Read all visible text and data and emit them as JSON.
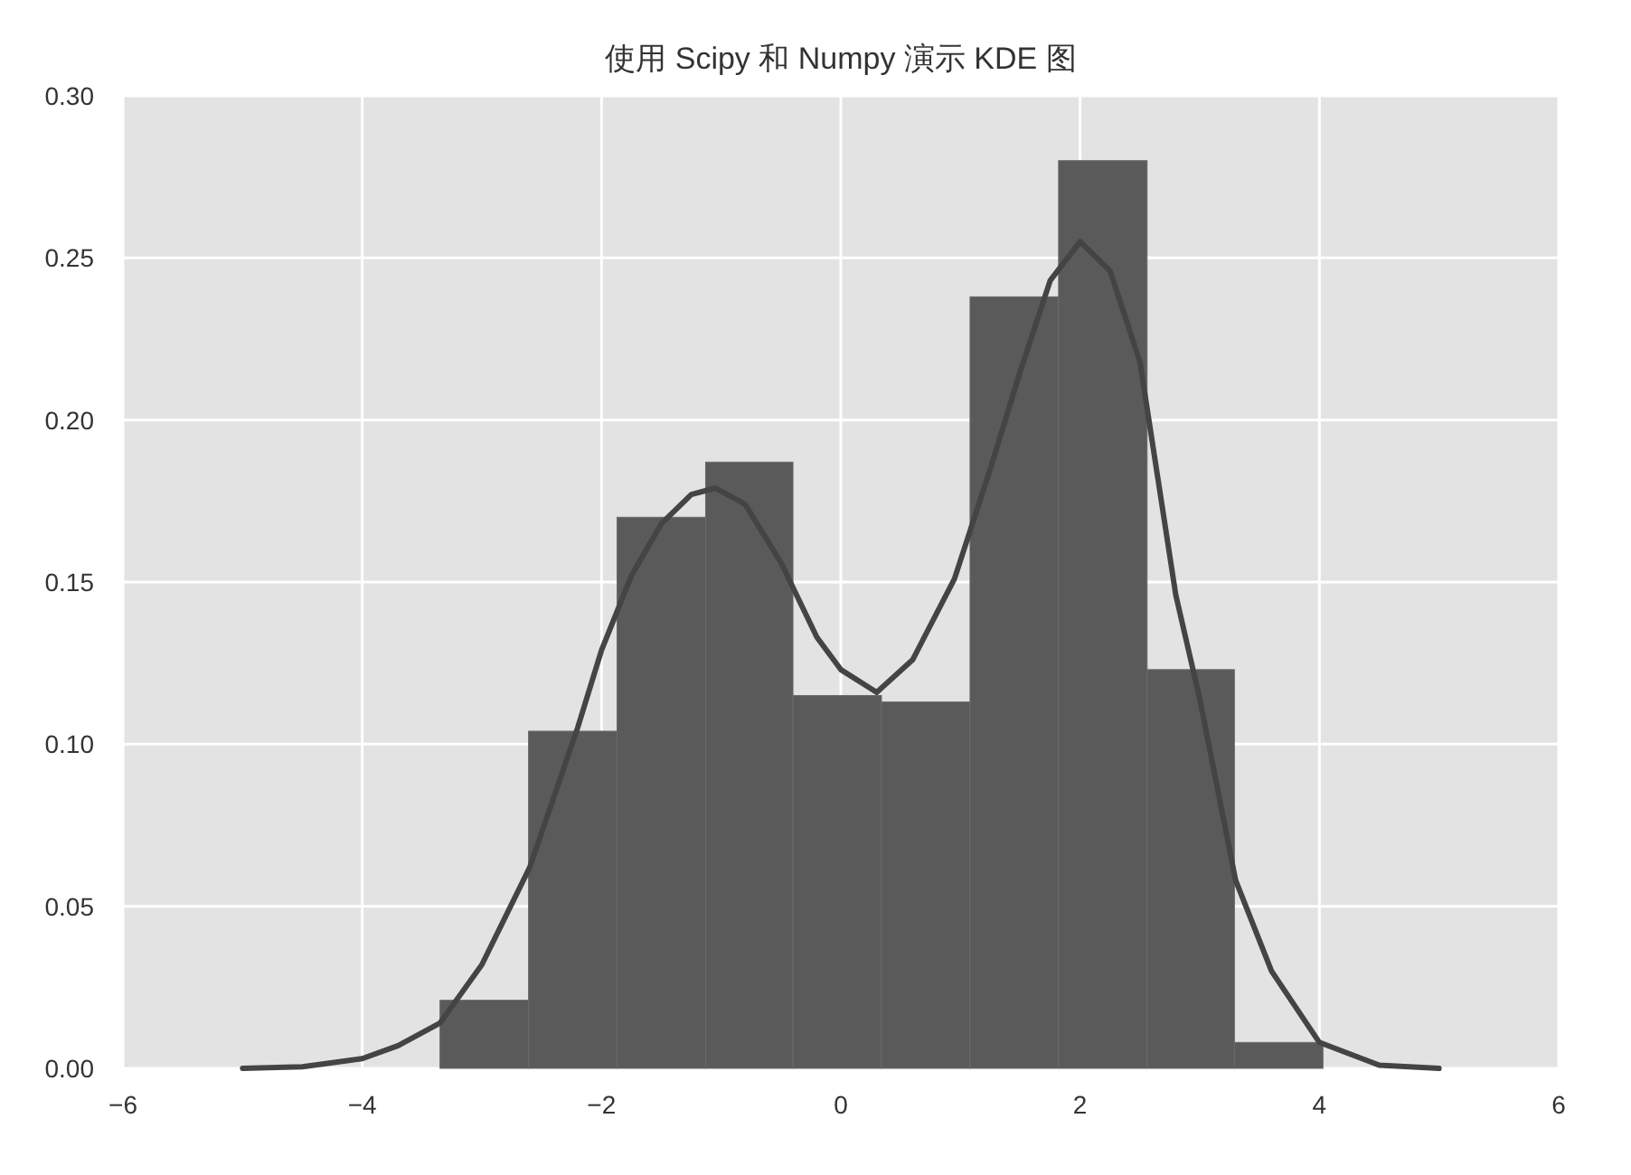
{
  "chart_data": {
    "type": "histogram",
    "title": "使用 Scipy 和 Numpy 演示 KDE 图",
    "series": [
      {
        "color": "#5a5a5a",
        "bins": [
          -3.35,
          -2.61,
          -1.87,
          -1.13,
          -0.4,
          0.34,
          1.08,
          1.82,
          2.56,
          3.29,
          4.03
        ],
        "values": [
          0.021,
          0.104,
          0.17,
          0.187,
          0.115,
          0.113,
          0.238,
          0.28,
          0.123,
          0.008
        ]
      },
      {
        "type": "line",
        "color": "#444444",
        "x": [
          -5,
          -4.5,
          -4,
          -3.7,
          -3.35,
          -3,
          -2.6,
          -2.2,
          -2,
          -1.75,
          -1.5,
          -1.25,
          -1.05,
          -0.8,
          -0.5,
          -0.2,
          0,
          0.3,
          0.6,
          0.95,
          1.25,
          1.5,
          1.75,
          2,
          2.25,
          2.5,
          2.8,
          3,
          3.3,
          3.6,
          4,
          4.5,
          5
        ],
        "values": [
          0,
          0.0005,
          0.003,
          0.007,
          0.014,
          0.032,
          0.062,
          0.105,
          0.129,
          0.152,
          0.168,
          0.177,
          0.179,
          0.174,
          0.156,
          0.133,
          0.123,
          0.116,
          0.126,
          0.151,
          0.185,
          0.215,
          0.243,
          0.255,
          0.246,
          0.218,
          0.146,
          0.114,
          0.058,
          0.03,
          0.008,
          0.001,
          0
        ]
      }
    ],
    "xlim": [
      -6,
      6
    ],
    "ylim": [
      0,
      0.3
    ],
    "xticks": [
      {
        "value": -6,
        "label": "−6"
      },
      {
        "value": -4,
        "label": "−4"
      },
      {
        "value": -2,
        "label": "−2"
      },
      0,
      2,
      4,
      6
    ],
    "yticks": [
      {
        "value": 0,
        "label": "0.00"
      },
      {
        "value": 0.05,
        "label": "0.05"
      },
      {
        "value": 0.1,
        "label": "0.10"
      },
      {
        "value": 0.15,
        "label": "0.15"
      },
      {
        "value": 0.2,
        "label": "0.20"
      },
      {
        "value": 0.25,
        "label": "0.25"
      },
      {
        "value": 0.3,
        "label": "0.30"
      }
    ],
    "grid": true
  }
}
